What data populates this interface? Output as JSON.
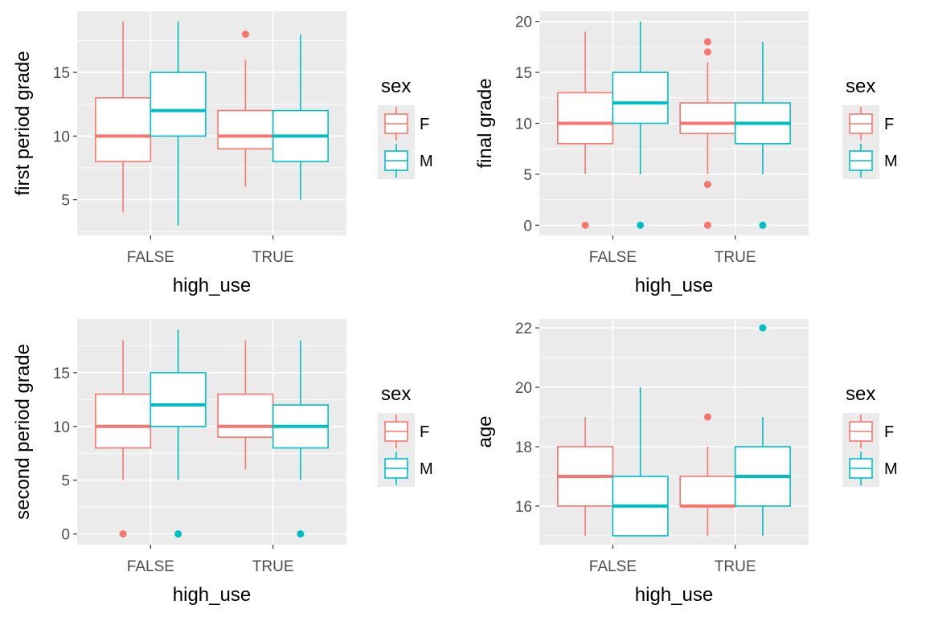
{
  "colors": {
    "F": "#F8766D",
    "M": "#00BFC4",
    "panel_bg": "#EBEBEB",
    "grid": "#FFFFFF",
    "tick_text": "#4D4D4D",
    "label_text": "#000000"
  },
  "chart_data": [
    {
      "type": "boxplot",
      "xlabel": "high_use",
      "ylabel": "first period grade",
      "categories": [
        "FALSE",
        "TRUE"
      ],
      "ylim": [
        2.2,
        19.8
      ],
      "yticks": [
        5,
        10,
        15
      ],
      "legend": {
        "title": "sex",
        "position": "right",
        "entries": [
          "F",
          "M"
        ]
      },
      "series": [
        {
          "name": "F",
          "boxes": [
            {
              "category": "FALSE",
              "min": 4,
              "q1": 8,
              "median": 10,
              "q3": 13,
              "max": 19,
              "outliers": []
            },
            {
              "category": "TRUE",
              "min": 6,
              "q1": 9,
              "median": 10,
              "q3": 12,
              "max": 16,
              "outliers": [
                18
              ]
            }
          ]
        },
        {
          "name": "M",
          "boxes": [
            {
              "category": "FALSE",
              "min": 3,
              "q1": 10,
              "median": 12,
              "q3": 15,
              "max": 19,
              "outliers": []
            },
            {
              "category": "TRUE",
              "min": 5,
              "q1": 8,
              "median": 10,
              "q3": 12,
              "max": 18,
              "outliers": []
            }
          ]
        }
      ]
    },
    {
      "type": "boxplot",
      "xlabel": "high_use",
      "ylabel": "final grade",
      "categories": [
        "FALSE",
        "TRUE"
      ],
      "ylim": [
        -1,
        21
      ],
      "yticks": [
        0,
        5,
        10,
        15,
        20
      ],
      "legend": {
        "title": "sex",
        "position": "right",
        "entries": [
          "F",
          "M"
        ]
      },
      "series": [
        {
          "name": "F",
          "boxes": [
            {
              "category": "FALSE",
              "min": 5,
              "q1": 8,
              "median": 10,
              "q3": 13,
              "max": 19,
              "outliers": [
                0
              ]
            },
            {
              "category": "TRUE",
              "min": 5,
              "q1": 9,
              "median": 10,
              "q3": 12,
              "max": 16,
              "outliers": [
                18,
                17,
                4,
                0
              ]
            }
          ]
        },
        {
          "name": "M",
          "boxes": [
            {
              "category": "FALSE",
              "min": 5,
              "q1": 10,
              "median": 12,
              "q3": 15,
              "max": 20,
              "outliers": [
                0
              ]
            },
            {
              "category": "TRUE",
              "min": 5,
              "q1": 8,
              "median": 10,
              "q3": 12,
              "max": 18,
              "outliers": [
                0
              ]
            }
          ]
        }
      ]
    },
    {
      "type": "boxplot",
      "xlabel": "high_use",
      "ylabel": "second period grade",
      "categories": [
        "FALSE",
        "TRUE"
      ],
      "ylim": [
        -1,
        20
      ],
      "yticks": [
        0,
        5,
        10,
        15
      ],
      "legend": {
        "title": "sex",
        "position": "right",
        "entries": [
          "F",
          "M"
        ]
      },
      "series": [
        {
          "name": "F",
          "boxes": [
            {
              "category": "FALSE",
              "min": 5,
              "q1": 8,
              "median": 10,
              "q3": 13,
              "max": 18,
              "outliers": [
                0
              ]
            },
            {
              "category": "TRUE",
              "min": 6,
              "q1": 9,
              "median": 10,
              "q3": 13,
              "max": 18,
              "outliers": []
            }
          ]
        },
        {
          "name": "M",
          "boxes": [
            {
              "category": "FALSE",
              "min": 5,
              "q1": 10,
              "median": 12,
              "q3": 15,
              "max": 19,
              "outliers": [
                0
              ]
            },
            {
              "category": "TRUE",
              "min": 5,
              "q1": 8,
              "median": 10,
              "q3": 12,
              "max": 18,
              "outliers": [
                0
              ]
            }
          ]
        }
      ]
    },
    {
      "type": "boxplot",
      "xlabel": "high_use",
      "ylabel": "age",
      "categories": [
        "FALSE",
        "TRUE"
      ],
      "ylim": [
        14.7,
        22.3
      ],
      "yticks": [
        16,
        18,
        20,
        22
      ],
      "legend": {
        "title": "sex",
        "position": "right",
        "entries": [
          "F",
          "M"
        ]
      },
      "series": [
        {
          "name": "F",
          "boxes": [
            {
              "category": "FALSE",
              "min": 15,
              "q1": 16,
              "median": 17,
              "q3": 18,
              "max": 19,
              "outliers": []
            },
            {
              "category": "TRUE",
              "min": 15,
              "q1": 16,
              "median": 16,
              "q3": 17,
              "max": 18,
              "outliers": [
                19
              ]
            }
          ]
        },
        {
          "name": "M",
          "boxes": [
            {
              "category": "FALSE",
              "min": 15,
              "q1": 15,
              "median": 16,
              "q3": 17,
              "max": 20,
              "outliers": []
            },
            {
              "category": "TRUE",
              "min": 15,
              "q1": 16,
              "median": 17,
              "q3": 18,
              "max": 19,
              "outliers": [
                22
              ]
            }
          ]
        }
      ]
    }
  ]
}
